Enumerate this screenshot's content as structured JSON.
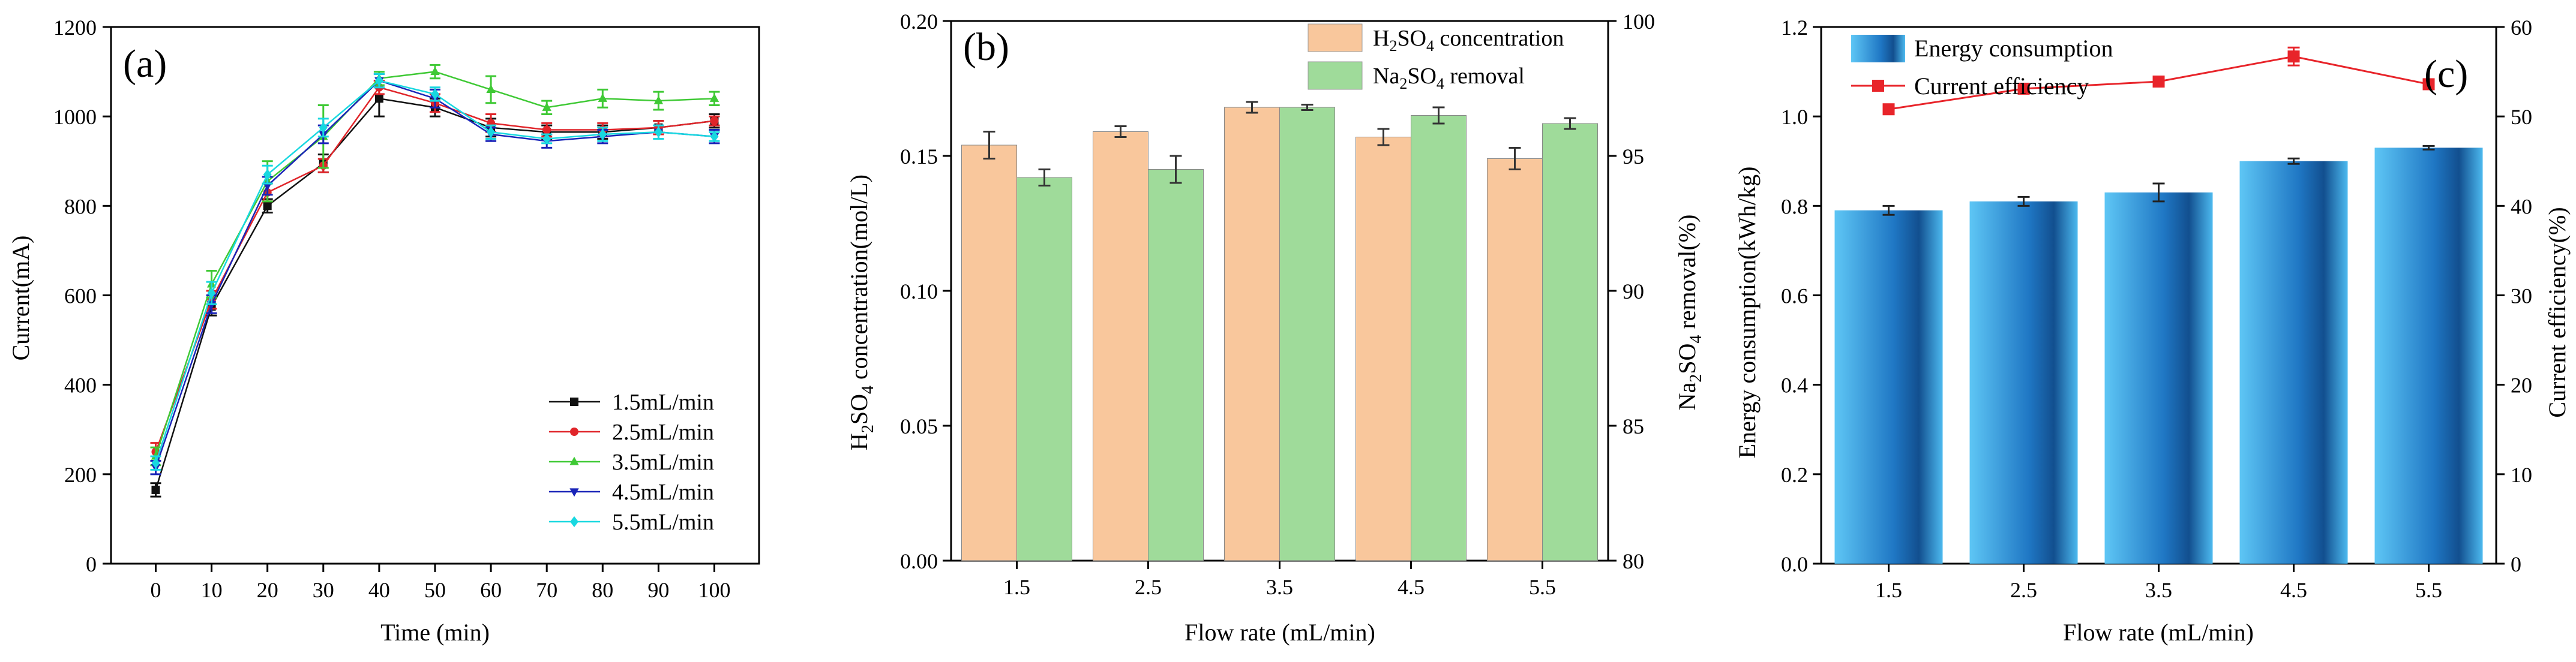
{
  "figure": {
    "panels": [
      "(a)",
      "(b)",
      "(c)"
    ]
  },
  "colors": {
    "s1": "#111111",
    "s2": "#e0252a",
    "s3": "#3fc935",
    "s4": "#1a24b8",
    "s5": "#18d8e0",
    "h2so4_bar": "#f9c79c",
    "na2so4_bar": "#9fdb9a",
    "energy_bar_light": "#58c2f3",
    "energy_bar_dark": "#145a9c",
    "efficiency_line": "#e8242a"
  },
  "chart_data": [
    {
      "id": "a",
      "type": "line",
      "panel_label": "(a)",
      "title": "",
      "xlabel": "Time (min)",
      "ylabel": "Current(mA)",
      "xlim": [
        -8,
        108
      ],
      "ylim": [
        0,
        1200
      ],
      "xticks": [
        0,
        10,
        20,
        30,
        40,
        50,
        60,
        70,
        80,
        90,
        100
      ],
      "yticks": [
        0,
        200,
        400,
        600,
        800,
        1000,
        1200
      ],
      "legend_position": "bottom-right",
      "x": [
        0,
        10,
        20,
        30,
        40,
        50,
        60,
        70,
        80,
        90,
        100
      ],
      "series": [
        {
          "name": "1.5mL/min",
          "marker": "square",
          "color_key": "s1",
          "values": [
            165,
            575,
            800,
            895,
            1040,
            1020,
            975,
            965,
            965,
            975,
            990
          ],
          "errors": [
            15,
            20,
            15,
            20,
            40,
            20,
            20,
            15,
            15,
            15,
            15
          ]
        },
        {
          "name": "2.5mL/min",
          "marker": "circle",
          "color_key": "s2",
          "values": [
            250,
            590,
            830,
            890,
            1065,
            1030,
            985,
            970,
            970,
            975,
            990
          ],
          "errors": [
            20,
            20,
            20,
            15,
            15,
            20,
            20,
            15,
            15,
            15,
            10
          ]
        },
        {
          "name": "3.5mL/min",
          "marker": "triangle-up",
          "color_key": "s3",
          "values": [
            240,
            625,
            855,
            955,
            1085,
            1100,
            1060,
            1020,
            1040,
            1035,
            1040
          ],
          "errors": [
            20,
            30,
            45,
            70,
            15,
            15,
            30,
            15,
            20,
            20,
            15
          ]
        },
        {
          "name": "4.5mL/min",
          "marker": "triangle-down",
          "color_key": "s4",
          "values": [
            215,
            580,
            845,
            960,
            1080,
            1040,
            960,
            945,
            955,
            965,
            955
          ],
          "errors": [
            15,
            20,
            20,
            20,
            15,
            20,
            15,
            15,
            15,
            15,
            15
          ]
        },
        {
          "name": "5.5mL/min",
          "marker": "diamond",
          "color_key": "s5",
          "values": [
            225,
            605,
            870,
            975,
            1080,
            1050,
            965,
            950,
            960,
            965,
            955
          ],
          "errors": [
            15,
            25,
            20,
            20,
            15,
            15,
            15,
            10,
            15,
            15,
            10
          ]
        }
      ]
    },
    {
      "id": "b",
      "type": "bar",
      "panel_label": "(b)",
      "title": "",
      "xlabel": "Flow rate (mL/min)",
      "ylabel": "H2SO4 concentration(mol/L)",
      "ylabel_right": "Na2SO4 removal(%)",
      "categories": [
        "1.5",
        "2.5",
        "3.5",
        "4.5",
        "5.5"
      ],
      "ylim": [
        0,
        0.2
      ],
      "ylim_right": [
        80,
        100
      ],
      "yticks": [
        "0.00",
        "0.05",
        "0.10",
        "0.15",
        "0.20"
      ],
      "yticks_right": [
        80,
        85,
        90,
        95,
        100
      ],
      "legend_position": "top-right",
      "series": [
        {
          "name": "H2SO4 concentration",
          "axis": "left",
          "color_key": "h2so4_bar",
          "values": [
            0.154,
            0.159,
            0.168,
            0.157,
            0.149
          ],
          "errors": [
            0.005,
            0.002,
            0.002,
            0.003,
            0.004
          ]
        },
        {
          "name": "Na2SO4 removal",
          "axis": "right",
          "color_key": "na2so4_bar",
          "values": [
            94.2,
            94.5,
            96.8,
            96.5,
            96.2
          ],
          "errors": [
            0.3,
            0.5,
            0.1,
            0.3,
            0.2
          ]
        }
      ]
    },
    {
      "id": "c",
      "type": "bar",
      "panel_label": "(c)",
      "title": "",
      "xlabel": "Flow rate (mL/min)",
      "ylabel": "Energy consumption(kWh/kg)",
      "ylabel_right": "Current efficiency(%)",
      "categories": [
        "1.5",
        "2.5",
        "3.5",
        "4.5",
        "5.5"
      ],
      "ylim": [
        0,
        1.2
      ],
      "ylim_right": [
        0,
        60
      ],
      "yticks": [
        "0.0",
        "0.2",
        "0.4",
        "0.6",
        "0.8",
        "1.0",
        "1.2"
      ],
      "yticks_right": [
        0,
        10,
        20,
        30,
        40,
        50,
        60
      ],
      "legend_position": "top-left",
      "series": [
        {
          "name": "Energy consumption",
          "type": "bar",
          "axis": "left",
          "color_key": "energy_bar_light",
          "values": [
            0.79,
            0.81,
            0.83,
            0.9,
            0.93
          ],
          "errors": [
            0.01,
            0.01,
            0.02,
            0.006,
            0.004
          ]
        },
        {
          "name": "Current efficiency",
          "type": "line",
          "axis": "right",
          "marker": "square",
          "color_key": "efficiency_line",
          "values": [
            50.8,
            53.1,
            53.9,
            56.7,
            53.6
          ],
          "errors": [
            0.3,
            0.5,
            0.5,
            1.0,
            0.3
          ]
        }
      ]
    }
  ]
}
